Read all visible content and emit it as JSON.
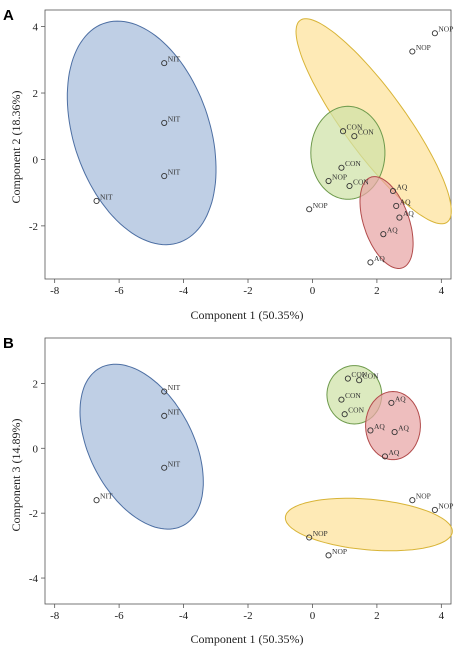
{
  "chart_data": [
    {
      "type": "scatter",
      "panel_label": "A",
      "xlabel": "Component 1 (50.35%)",
      "ylabel": "Component 2 (18.36%)",
      "xlim": [
        -8.3,
        4.3
      ],
      "ylim": [
        -3.6,
        4.5
      ],
      "xticks": [
        -8,
        -6,
        -4,
        -2,
        0,
        2,
        4
      ],
      "yticks": [
        -2,
        0,
        2,
        4
      ],
      "grid": false,
      "groups": [
        {
          "label": "NIT",
          "fill": "#a6bddb",
          "stroke": "#4d6fa3",
          "ellipse": {
            "cx": -5.3,
            "cy": 0.8,
            "rx": 2.1,
            "ry": 3.5,
            "angle_deg": 20
          },
          "points": [
            {
              "x": -4.6,
              "y": 2.9
            },
            {
              "x": -4.6,
              "y": 1.1
            },
            {
              "x": -4.6,
              "y": -0.5
            },
            {
              "x": -6.7,
              "y": -1.25
            }
          ]
        },
        {
          "label": "NOP",
          "fill": "#fde29a",
          "stroke": "#d8b437",
          "ellipse": {
            "cx": 1.9,
            "cy": 1.15,
            "rx": 0.95,
            "ry": 3.8,
            "angle_deg": 37
          },
          "points": [
            {
              "x": 3.8,
              "y": 3.8
            },
            {
              "x": 3.1,
              "y": 3.25
            },
            {
              "x": 0.5,
              "y": -0.65
            },
            {
              "x": -0.1,
              "y": -1.5
            }
          ]
        },
        {
          "label": "CON",
          "fill": "#cfe2a6",
          "stroke": "#6e9a4c",
          "ellipse": {
            "cx": 1.1,
            "cy": 0.2,
            "rx": 1.15,
            "ry": 1.4,
            "angle_deg": 0
          },
          "points": [
            {
              "x": 0.95,
              "y": 0.85
            },
            {
              "x": 1.3,
              "y": 0.7
            },
            {
              "x": 0.9,
              "y": -0.25
            },
            {
              "x": 1.15,
              "y": -0.8
            }
          ]
        },
        {
          "label": "AQ",
          "fill": "#e8a5a5",
          "stroke": "#b24b4b",
          "ellipse": {
            "cx": 2.3,
            "cy": -1.9,
            "rx": 0.7,
            "ry": 1.45,
            "angle_deg": 20
          },
          "points": [
            {
              "x": 2.5,
              "y": -0.95
            },
            {
              "x": 2.6,
              "y": -1.4
            },
            {
              "x": 2.7,
              "y": -1.75
            },
            {
              "x": 2.2,
              "y": -2.25
            },
            {
              "x": 1.8,
              "y": -3.1
            }
          ]
        }
      ]
    },
    {
      "type": "scatter",
      "panel_label": "B",
      "xlabel": "Component 1 (50.35%)",
      "ylabel": "Component 3 (14.89%)",
      "xlim": [
        -8.3,
        4.3
      ],
      "ylim": [
        -4.8,
        3.4
      ],
      "xticks": [
        -8,
        -6,
        -4,
        -2,
        0,
        2,
        4
      ],
      "yticks": [
        -4,
        -2,
        0,
        2
      ],
      "grid": false,
      "groups": [
        {
          "label": "NIT",
          "fill": "#a6bddb",
          "stroke": "#4d6fa3",
          "ellipse": {
            "cx": -5.3,
            "cy": 0.05,
            "rx": 1.6,
            "ry": 2.75,
            "angle_deg": 28
          },
          "points": [
            {
              "x": -4.6,
              "y": 1.75
            },
            {
              "x": -4.6,
              "y": 1.0
            },
            {
              "x": -4.6,
              "y": -0.6
            },
            {
              "x": -6.7,
              "y": -1.6
            }
          ]
        },
        {
          "label": "CON",
          "fill": "#cfe2a6",
          "stroke": "#6e9a4c",
          "ellipse": {
            "cx": 1.3,
            "cy": 1.65,
            "rx": 0.85,
            "ry": 0.9,
            "angle_deg": 0
          },
          "points": [
            {
              "x": 1.1,
              "y": 2.15
            },
            {
              "x": 1.45,
              "y": 2.1
            },
            {
              "x": 0.9,
              "y": 1.5
            },
            {
              "x": 1.0,
              "y": 1.05
            }
          ]
        },
        {
          "label": "AQ",
          "fill": "#e8a5a5",
          "stroke": "#b24b4b",
          "ellipse": {
            "cx": 2.5,
            "cy": 0.7,
            "rx": 0.85,
            "ry": 1.05,
            "angle_deg": 0
          },
          "points": [
            {
              "x": 2.45,
              "y": 1.4
            },
            {
              "x": 1.8,
              "y": 0.55
            },
            {
              "x": 2.55,
              "y": 0.5
            },
            {
              "x": 2.25,
              "y": -0.25
            }
          ]
        },
        {
          "label": "NOP",
          "fill": "#fde29a",
          "stroke": "#d8b437",
          "ellipse": {
            "cx": 1.75,
            "cy": -2.35,
            "rx": 2.6,
            "ry": 0.78,
            "angle_deg": -5
          },
          "points": [
            {
              "x": 3.1,
              "y": -1.6
            },
            {
              "x": 3.8,
              "y": -1.9
            },
            {
              "x": -0.1,
              "y": -2.75
            },
            {
              "x": 0.5,
              "y": -3.3
            }
          ]
        }
      ]
    }
  ]
}
